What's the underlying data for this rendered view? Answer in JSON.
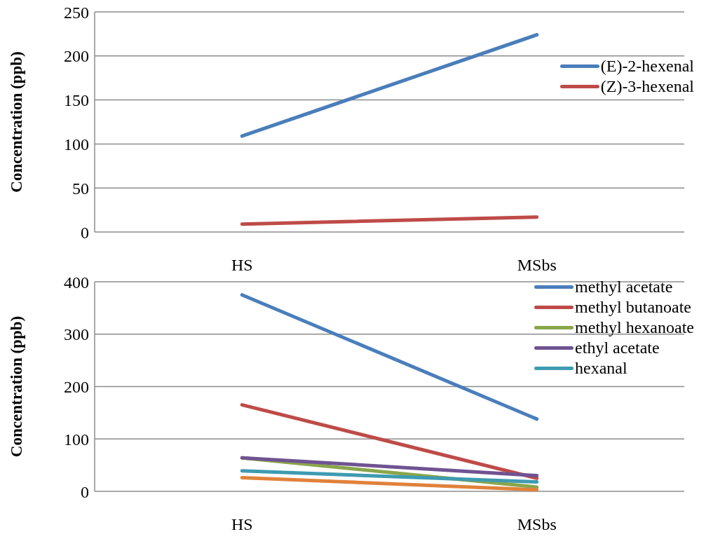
{
  "chart_data": [
    {
      "type": "line",
      "ylabel": "Concentration (ppb)",
      "categories": [
        "HS",
        "MSbs"
      ],
      "ylim": [
        0,
        250
      ],
      "yticks": [
        0,
        50,
        100,
        150,
        200,
        250
      ],
      "grid": "y",
      "legend": "top right",
      "series": [
        {
          "name": "(E)-2-hexenal",
          "color": "#4a7ebb",
          "values": [
            109,
            224
          ]
        },
        {
          "name": "(Z)-3-hexenal",
          "color": "#be4b48",
          "values": [
            9,
            17
          ]
        }
      ]
    },
    {
      "type": "line",
      "ylabel": "Concentration (ppb)",
      "categories": [
        "HS",
        "MSbs"
      ],
      "ylim": [
        0,
        400
      ],
      "yticks": [
        0,
        100,
        200,
        300,
        400
      ],
      "grid": "y",
      "legend": "top right",
      "series": [
        {
          "name": "methyl acetate",
          "color": "#4a7ebb",
          "values": [
            375,
            138
          ]
        },
        {
          "name": "methyl butanoate",
          "color": "#be4b48",
          "values": [
            165,
            25
          ]
        },
        {
          "name": "methyl hexanoate",
          "color": "#8aa64a",
          "values": [
            64,
            8
          ]
        },
        {
          "name": "ethyl acetate",
          "color": "#6f5391",
          "values": [
            64,
            30
          ]
        },
        {
          "name": "hexanal",
          "color": "#3e9bb1",
          "values": [
            39,
            18
          ]
        },
        {
          "color": "#e0823a",
          "values": [
            26,
            3
          ]
        }
      ]
    }
  ]
}
